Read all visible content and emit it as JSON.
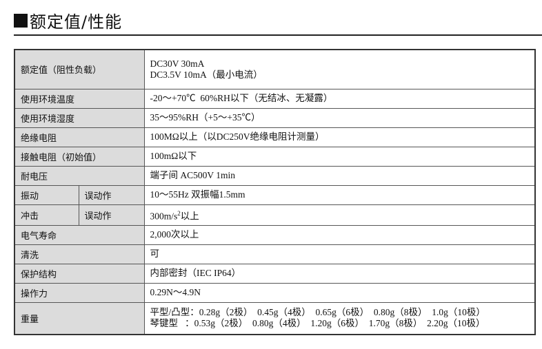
{
  "title": "额定值/性能",
  "rows": [
    {
      "label": "额定值（阻性负载）",
      "values": [
        "DC30V 30mA",
        "DC3.5V 10mA（最小电流）"
      ]
    },
    {
      "label": "使用环境温度",
      "values": [
        "-20～+70℃  60%RH以下（无结冰、无凝露）"
      ]
    },
    {
      "label": "使用环境湿度",
      "values": [
        "35～95%RH（+5～+35℃）"
      ]
    },
    {
      "label": "绝缘电阻",
      "values": [
        "100MΩ以上（以DC250V绝缘电阻计测量）"
      ]
    },
    {
      "label": "接触电阻（初始值）",
      "values": [
        "100mΩ以下"
      ]
    },
    {
      "label": "耐电压",
      "values": [
        "端子间 AC500V 1min"
      ]
    },
    {
      "label": "振动",
      "sublabel": "误动作",
      "values": [
        "10～55Hz 双振幅1.5mm"
      ]
    },
    {
      "label": "冲击",
      "sublabel": "误动作",
      "values": [
        "300m/s",
        "2",
        "以上"
      ]
    },
    {
      "label": "电气寿命",
      "values": [
        "2,000次以上"
      ]
    },
    {
      "label": "清洗",
      "values": [
        "可"
      ]
    },
    {
      "label": "保护结构",
      "values": [
        "内部密封（IEC IP64）"
      ]
    },
    {
      "label": "操作力",
      "values": [
        "0.29N～4.9N"
      ]
    },
    {
      "label": "重量",
      "values": [
        "平型/凸型：0.28g（2极）  0.45g（4极）  0.65g（6极）  0.80g（8极）  1.0g（10极）",
        "琴键型   ：0.53g（2极）  0.80g（4极）  1.20g（6极）  1.70g（8极）  2.20g（10极）"
      ]
    }
  ]
}
